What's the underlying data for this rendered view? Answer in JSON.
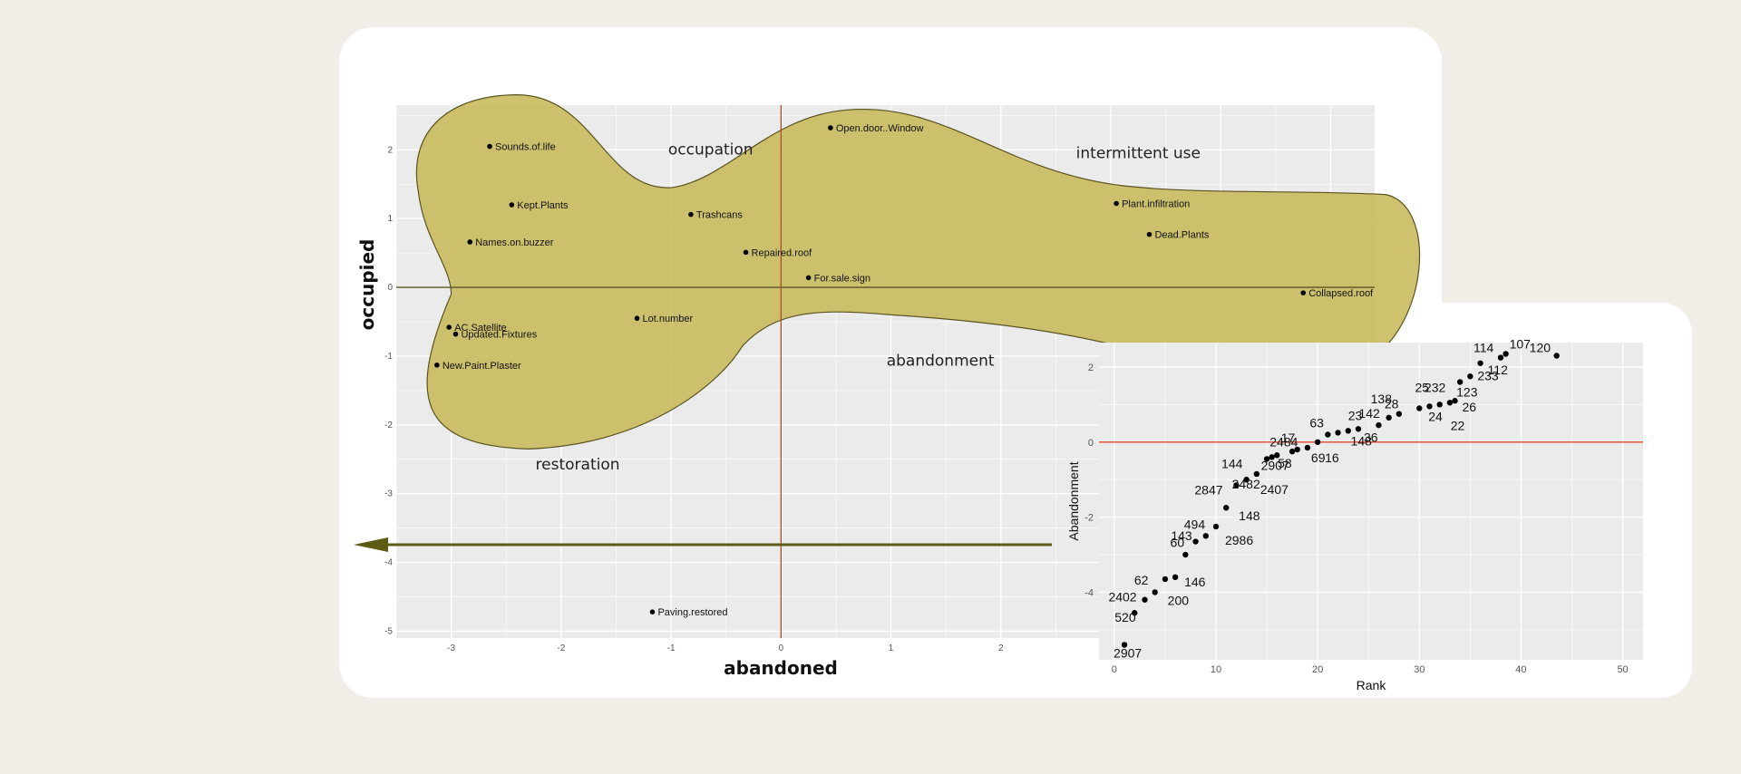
{
  "colors": {
    "background": "#f1eee7",
    "card": "#ffffff",
    "panel": "#ebebeb",
    "grid": "#ffffff",
    "blob_fill": "#c9bb5e",
    "blob_stroke": "#5a5320",
    "axis_line_x": "#5a5320",
    "axis_line_y": "#a0522d",
    "arrow": "#5c5c14",
    "zero_line_inset": "#e0442a",
    "point": "#000000"
  },
  "chart_data": [
    {
      "type": "scatter",
      "xlabel": "abandoned",
      "ylabel": "occupied",
      "xlim": [
        -3.5,
        5.4
      ],
      "ylim": [
        -5.1,
        2.65
      ],
      "x_ticks": [
        -3,
        -2,
        -1,
        0,
        1,
        2
      ],
      "y_ticks": [
        2,
        1,
        0,
        -1,
        -2,
        -3,
        -4,
        -5
      ],
      "grid": true,
      "region_labels": [
        "occupation",
        "intermittent use",
        "abandonment",
        "restoration"
      ],
      "points": [
        {
          "label": "Sounds.of.life",
          "x": -2.65,
          "y": 2.05
        },
        {
          "label": "Kept.Plants",
          "x": -2.45,
          "y": 1.2
        },
        {
          "label": "Names.on.buzzer",
          "x": -2.83,
          "y": 0.66
        },
        {
          "label": "AC.Satellite",
          "x": -3.02,
          "y": -0.58
        },
        {
          "label": "Updated.Fixtures",
          "x": -2.96,
          "y": -0.68
        },
        {
          "label": "New.Paint.Plaster",
          "x": -3.13,
          "y": -1.13
        },
        {
          "label": "Lot.number",
          "x": -1.31,
          "y": -0.45
        },
        {
          "label": "Trashcans",
          "x": -0.82,
          "y": 1.06
        },
        {
          "label": "Repaired.roof",
          "x": -0.32,
          "y": 0.51
        },
        {
          "label": "Open.door..Window",
          "x": 0.45,
          "y": 2.32
        },
        {
          "label": "For.sale.sign",
          "x": 0.25,
          "y": 0.14
        },
        {
          "label": "Plant.infiltration",
          "x": 3.05,
          "y": 1.22
        },
        {
          "label": "Dead.Plants",
          "x": 3.35,
          "y": 0.77
        },
        {
          "label": "Collapsed.roof",
          "x": 4.75,
          "y": -0.08
        },
        {
          "label": "Paving.restored",
          "x": -1.17,
          "y": -4.72
        }
      ]
    },
    {
      "type": "scatter",
      "xlabel": "Rank",
      "ylabel": "Abandonment",
      "xlim": [
        -1.5,
        52
      ],
      "ylim": [
        -5.8,
        2.65
      ],
      "x_ticks": [
        0,
        10,
        20,
        30,
        40,
        50
      ],
      "y_ticks": [
        2,
        0,
        -2,
        -4
      ],
      "grid": true,
      "points": [
        {
          "label": "2907",
          "x": 1,
          "y": -5.4
        },
        {
          "label": "520",
          "x": 2,
          "y": -4.55
        },
        {
          "label": "2402",
          "x": 3,
          "y": -4.2
        },
        {
          "label": "200",
          "x": 4,
          "y": -4.0
        },
        {
          "label": "62",
          "x": 5,
          "y": -3.65
        },
        {
          "label": "146",
          "x": 6,
          "y": -3.6
        },
        {
          "label": "143",
          "x": 7,
          "y": -3.0
        },
        {
          "label": "60",
          "x": 8,
          "y": -2.65
        },
        {
          "label": "494",
          "x": 9,
          "y": -2.5
        },
        {
          "label": "2986",
          "x": 10,
          "y": -2.25
        },
        {
          "label": "148",
          "x": 11,
          "y": -1.75
        },
        {
          "label": "2847",
          "x": 12,
          "y": -1.15
        },
        {
          "label": "2482",
          "x": 13,
          "y": -1.0
        },
        {
          "label": "2407",
          "x": 14,
          "y": -0.85
        },
        {
          "label": "144",
          "x": 15,
          "y": -0.45
        },
        {
          "label": "2907",
          "x": 15.5,
          "y": -0.4
        },
        {
          "label": "2484",
          "x": 16,
          "y": -0.35
        },
        {
          "label": "58",
          "x": 17.5,
          "y": -0.25
        },
        {
          "label": "17",
          "x": 18,
          "y": -0.2
        },
        {
          "label": "69",
          "x": 19,
          "y": -0.15
        },
        {
          "label": "16",
          "x": 20,
          "y": 0.0
        },
        {
          "label": "63",
          "x": 21,
          "y": 0.2
        },
        {
          "label": "148",
          "x": 22,
          "y": 0.25
        },
        {
          "label": "23",
          "x": 23,
          "y": 0.3
        },
        {
          "label": "36",
          "x": 24,
          "y": 0.35
        },
        {
          "label": "142",
          "x": 26,
          "y": 0.45
        },
        {
          "label": "138",
          "x": 27,
          "y": 0.65
        },
        {
          "label": "28",
          "x": 28,
          "y": 0.75
        },
        {
          "label": "24",
          "x": 30,
          "y": 0.9
        },
        {
          "label": "25",
          "x": 31,
          "y": 0.95
        },
        {
          "label": "22",
          "x": 32,
          "y": 1.0
        },
        {
          "label": "232",
          "x": 33,
          "y": 1.05
        },
        {
          "label": "26",
          "x": 33.5,
          "y": 1.1
        },
        {
          "label": "123",
          "x": 34,
          "y": 1.6
        },
        {
          "label": "233",
          "x": 35,
          "y": 1.75
        },
        {
          "label": "112",
          "x": 36,
          "y": 2.1
        },
        {
          "label": "114",
          "x": 38,
          "y": 2.25
        },
        {
          "label": "107",
          "x": 38.5,
          "y": 2.35
        },
        {
          "label": "120",
          "x": 43.5,
          "y": 2.3
        }
      ]
    }
  ]
}
